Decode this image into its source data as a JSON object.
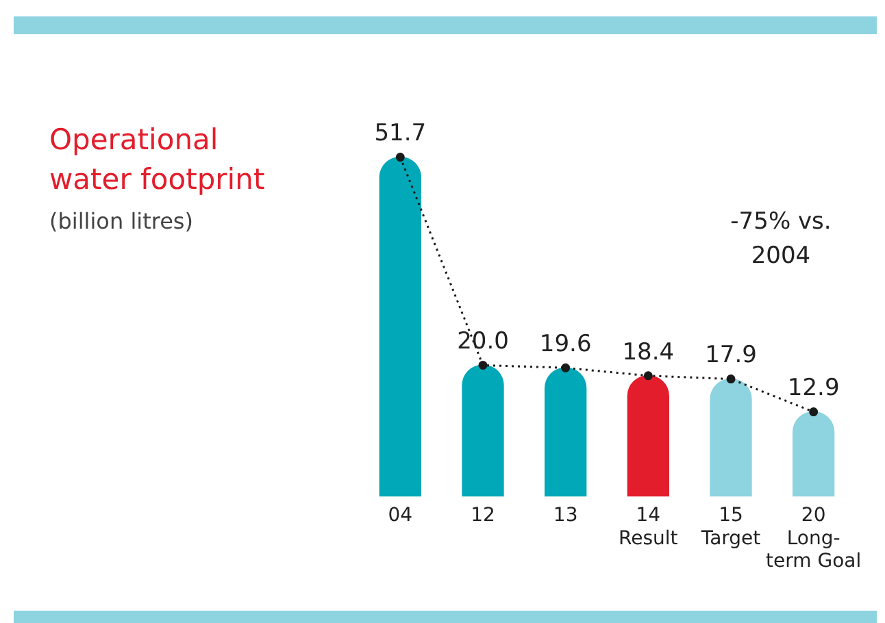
{
  "chart_data": {
    "type": "bar",
    "title": "Operational water footprint",
    "subtitle": "(billion litres)",
    "annotations": [
      "-75% vs. 2004"
    ],
    "categories": [
      "04",
      "12",
      "13",
      "14\nResult",
      "15\nTarget",
      "20\nLong-\nterm Goal"
    ],
    "series": [
      {
        "colors": [
          "#00a8b8",
          "#00a8b8",
          "#00a8b8",
          "#e31d2b",
          "#8dd3e0",
          "#8dd3e0"
        ],
        "values": [
          51.7,
          20.0,
          19.6,
          18.4,
          17.9,
          12.9
        ],
        "value_labels": [
          "51.7",
          "20.0",
          "19.6",
          "18.4",
          "17.9",
          "12.9"
        ]
      },
      {
        "type": "line",
        "color": "#1a1a1a",
        "values": [
          51.7,
          20.0,
          19.6,
          18.4,
          17.9,
          12.9
        ],
        "line_style": "dotted",
        "marker": "circle"
      }
    ],
    "grid": false,
    "legend": false
  }
}
